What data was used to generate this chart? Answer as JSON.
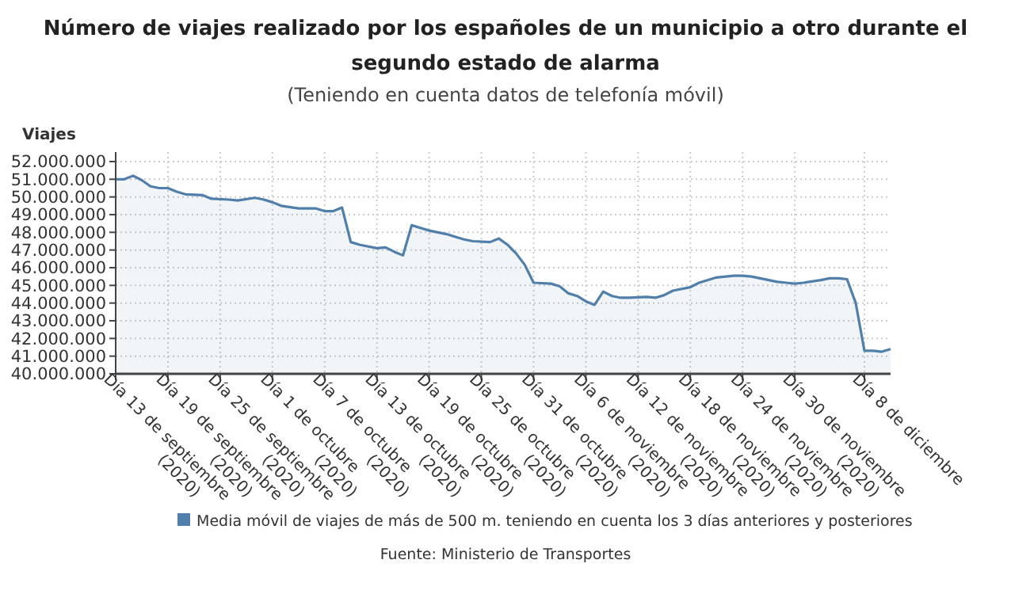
{
  "chart_data": {
    "type": "area",
    "title": "Número de viajes realizado por los españoles de un municipio a otro durante el segundo estado de alarma",
    "subtitle": "(Teniendo en cuenta datos de telefonía móvil)",
    "ylabel": "Viajes",
    "annotations": [
      "Fuente: Ministerio de Transportes"
    ],
    "x": [
      "2020-09-13",
      "2020-09-14",
      "2020-09-15",
      "2020-09-16",
      "2020-09-17",
      "2020-09-18",
      "2020-09-19",
      "2020-09-20",
      "2020-09-21",
      "2020-09-23",
      "2020-09-24",
      "2020-09-26",
      "2020-09-27",
      "2020-09-29",
      "2020-09-30",
      "2020-10-01",
      "2020-10-02",
      "2020-10-04",
      "2020-10-06",
      "2020-10-07",
      "2020-10-08",
      "2020-10-09",
      "2020-10-10",
      "2020-10-11",
      "2020-10-13",
      "2020-10-14",
      "2020-10-15",
      "2020-10-16",
      "2020-10-17",
      "2020-10-18",
      "2020-10-19",
      "2020-10-21",
      "2020-10-22",
      "2020-10-23",
      "2020-10-24",
      "2020-10-26",
      "2020-10-27",
      "2020-10-28",
      "2020-10-29",
      "2020-10-30",
      "2020-10-31",
      "2020-11-02",
      "2020-11-03",
      "2020-11-04",
      "2020-11-05",
      "2020-11-06",
      "2020-11-07",
      "2020-11-08",
      "2020-11-09",
      "2020-11-10",
      "2020-11-11",
      "2020-11-13",
      "2020-11-14",
      "2020-11-15",
      "2020-11-16",
      "2020-11-18",
      "2020-11-19",
      "2020-11-21",
      "2020-11-23",
      "2020-11-24",
      "2020-11-25",
      "2020-11-27",
      "2020-11-28",
      "2020-11-29",
      "2020-11-30",
      "2020-12-01",
      "2020-12-03",
      "2020-12-04",
      "2020-12-05",
      "2020-12-06",
      "2020-12-07",
      "2020-12-08",
      "2020-12-09",
      "2020-12-10",
      "2020-12-11"
    ],
    "series": [
      {
        "name": "Media móvil de viajes de más de 500 m. teniendo en cuenta los 3 días anteriores y posteriores",
        "color": "#4f7faa",
        "values": [
          51000000,
          51000000,
          51200000,
          50950000,
          50600000,
          50500000,
          50500000,
          50300000,
          50150000,
          50100000,
          49900000,
          49850000,
          49800000,
          49950000,
          49850000,
          49700000,
          49500000,
          49350000,
          49350000,
          49200000,
          49200000,
          49400000,
          47450000,
          47300000,
          47100000,
          47150000,
          46900000,
          46700000,
          48400000,
          48250000,
          48100000,
          47900000,
          47750000,
          47600000,
          47500000,
          47450000,
          47650000,
          47300000,
          46800000,
          46150000,
          45150000,
          45100000,
          44950000,
          44550000,
          44400000,
          44100000,
          43900000,
          44650000,
          44400000,
          44300000,
          44300000,
          44350000,
          44300000,
          44450000,
          44700000,
          44900000,
          45150000,
          45450000,
          45550000,
          45550000,
          45500000,
          45300000,
          45200000,
          45150000,
          45100000,
          45150000,
          45300000,
          45400000,
          45400000,
          45350000,
          44000000,
          41300000,
          41300000,
          41250000,
          41400000
        ]
      }
    ],
    "ylim": [
      40000000,
      52000000
    ],
    "yticks": [
      {
        "value": 40000000,
        "label": "40.000.000"
      },
      {
        "value": 41000000,
        "label": "41.000.000"
      },
      {
        "value": 42000000,
        "label": "42.000.000"
      },
      {
        "value": 43000000,
        "label": "43.000.000"
      },
      {
        "value": 44000000,
        "label": "44.000.000"
      },
      {
        "value": 45000000,
        "label": "45.000.000"
      },
      {
        "value": 46000000,
        "label": "46.000.000"
      },
      {
        "value": 47000000,
        "label": "47.000.000"
      },
      {
        "value": 48000000,
        "label": "48.000.000"
      },
      {
        "value": 49000000,
        "label": "49.000.000"
      },
      {
        "value": 50000000,
        "label": "50.000.000"
      },
      {
        "value": 51000000,
        "label": "51.000.000"
      },
      {
        "value": 52000000,
        "label": "52.000.000"
      }
    ],
    "xlim": [
      "2020-09-13",
      "2020-12-11"
    ],
    "xticks": [
      {
        "value": "2020-09-13",
        "label": "Día 13 de septiembre\n(2020)"
      },
      {
        "value": "2020-09-19",
        "label": "Día 19 de septiembre\n(2020)"
      },
      {
        "value": "2020-09-25",
        "label": "Día 25 de septiembre\n(2020)"
      },
      {
        "value": "2020-10-01",
        "label": "Día 1 de octubre\n(2020)"
      },
      {
        "value": "2020-10-07",
        "label": "Día 7 de octubre\n(2020)"
      },
      {
        "value": "2020-10-13",
        "label": "Día 13 de octubre\n(2020)"
      },
      {
        "value": "2020-10-19",
        "label": "Día 19 de octubre\n(2020)"
      },
      {
        "value": "2020-10-25",
        "label": "Día 25 de octubre\n(2020)"
      },
      {
        "value": "2020-10-31",
        "label": "Día 31 de octubre\n(2020)"
      },
      {
        "value": "2020-11-06",
        "label": "Día 6 de noviembre\n(2020)"
      },
      {
        "value": "2020-11-12",
        "label": "Día 12 de noviembre\n(2020)"
      },
      {
        "value": "2020-11-18",
        "label": "Día 18 de noviembre\n(2020)"
      },
      {
        "value": "2020-11-24",
        "label": "Día 24 de noviembre\n(2020)"
      },
      {
        "value": "2020-11-30",
        "label": "Día 30 de noviembre\n(2020)"
      },
      {
        "value": "2020-12-08",
        "label": "Día 8 de diciembre"
      }
    ],
    "grid": true,
    "legend": "bottom",
    "marker": "none",
    "line_style": "solid"
  }
}
